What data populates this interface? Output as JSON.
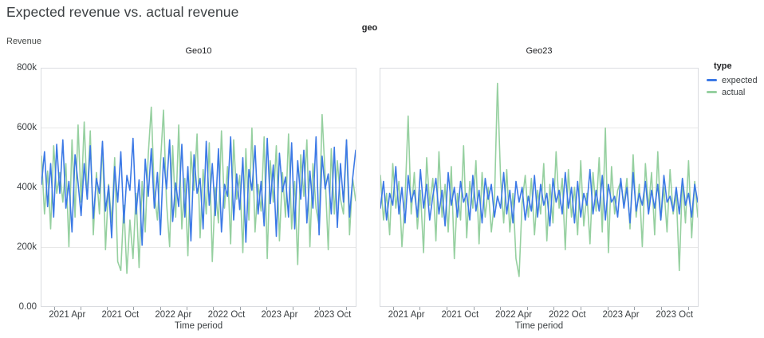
{
  "title": "Expected revenue vs. actual revenue",
  "facet_field": "geo",
  "legend": {
    "title": "type",
    "items": [
      {
        "label": "expected",
        "color": "#3c79e6"
      },
      {
        "label": "actual",
        "color": "#96d0a0"
      }
    ]
  },
  "colors": {
    "expected_line": "#3c79e6",
    "actual_line": "#96d0a0",
    "panel_border": "#dadce0",
    "gridline": "#e8e8e8",
    "text_dark": "#202124",
    "text_axis": "#3c4043"
  },
  "chart_data": [
    {
      "type": "line",
      "facet": "Geo10",
      "xlabel": "Time period",
      "ylabel": "Revenue",
      "ylim": [
        0,
        800000
      ],
      "value_unit": "thousands (k)",
      "x_range": "Jan 2021 to Dec 2023, points evenly spaced",
      "x_domain_months": 35.7,
      "grid": "horizontal",
      "y_tick_labels": [
        "800k",
        "600k",
        "400k",
        "200k",
        "0.00"
      ],
      "x_ticks": [
        {
          "label": "2021 Apr",
          "month": 3
        },
        {
          "label": "2021 Oct",
          "month": 9
        },
        {
          "label": "2022 Apr",
          "month": 15
        },
        {
          "label": "2022 Oct",
          "month": 21
        },
        {
          "label": "2023 Apr",
          "month": 27
        },
        {
          "label": "2023 Oct",
          "month": 33
        }
      ],
      "series": [
        {
          "name": "expected",
          "color": "#3c79e6",
          "values_k": [
            410,
            520,
            335,
            480,
            300,
            545,
            380,
            560,
            330,
            420,
            250,
            510,
            415,
            305,
            480,
            360,
            540,
            295,
            430,
            380,
            555,
            320,
            405,
            230,
            470,
            350,
            520,
            280,
            440,
            390,
            565,
            310,
            425,
            205,
            495,
            370,
            530,
            330,
            450,
            240,
            500,
            395,
            560,
            285,
            415,
            335,
            545,
            300,
            470,
            220,
            510,
            380,
            430,
            260,
            555,
            340,
            480,
            305,
            530,
            250,
            410,
            370,
            570,
            290,
            445,
            325,
            500,
            215,
            460,
            390,
            540,
            310,
            420,
            270,
            565,
            345,
            475,
            235,
            515,
            385,
            435,
            300,
            550,
            260,
            490,
            360,
            525,
            280,
            455,
            330,
            570,
            240,
            505,
            395,
            445,
            310,
            535,
            265,
            480,
            350,
            560,
            300,
            430,
            525
          ]
        },
        {
          "name": "actual",
          "color": "#96d0a0",
          "values_k": [
            505,
            310,
            455,
            260,
            540,
            380,
            450,
            350,
            480,
            200,
            560,
            300,
            610,
            350,
            620,
            360,
            590,
            240,
            450,
            310,
            550,
            190,
            410,
            280,
            500,
            150,
            120,
            340,
            110,
            290,
            160,
            380,
            130,
            420,
            250,
            510,
            670,
            380,
            290,
            480,
            660,
            350,
            200,
            540,
            300,
            610,
            260,
            430,
            170,
            520,
            390,
            580,
            230,
            460,
            310,
            550,
            150,
            400,
            280,
            590,
            330,
            470,
            210,
            560,
            360,
            440,
            180,
            530,
            290,
            600,
            250,
            410,
            320,
            570,
            160,
            490,
            350,
            540,
            220,
            450,
            300,
            580,
            260,
            420,
            140,
            510,
            370,
            560,
            200,
            480,
            330,
            270,
            645,
            440,
            190,
            530,
            310,
            490,
            360,
            310,
            560,
            240,
            430,
            355
          ]
        }
      ]
    },
    {
      "type": "line",
      "facet": "Geo23",
      "xlabel": "Time period",
      "ylabel": "Revenue",
      "ylim": [
        0,
        800000
      ],
      "value_unit": "thousands (k)",
      "x_range": "Jan 2021 to Dec 2023, points evenly spaced",
      "x_domain_months": 35.7,
      "grid": "horizontal",
      "y_tick_labels": [
        "800k",
        "600k",
        "400k",
        "200k",
        "0.00"
      ],
      "x_ticks": [
        {
          "label": "2021 Apr",
          "month": 3
        },
        {
          "label": "2021 Oct",
          "month": 9
        },
        {
          "label": "2022 Apr",
          "month": 15
        },
        {
          "label": "2022 Oct",
          "month": 21
        },
        {
          "label": "2023 Apr",
          "month": 27
        },
        {
          "label": "2023 Oct",
          "month": 33
        }
      ],
      "series": [
        {
          "name": "expected",
          "color": "#3c79e6",
          "values_k": [
            330,
            420,
            290,
            380,
            340,
            470,
            310,
            400,
            280,
            440,
            350,
            390,
            300,
            460,
            330,
            410,
            290,
            370,
            430,
            310,
            390,
            270,
            450,
            340,
            400,
            300,
            420,
            350,
            380,
            290,
            440,
            320,
            390,
            280,
            430,
            360,
            410,
            300,
            370,
            330,
            450,
            310,
            390,
            280,
            420,
            350,
            400,
            290,
            370,
            320,
            440,
            300,
            410,
            340,
            380,
            270,
            430,
            350,
            390,
            310,
            450,
            330,
            400,
            280,
            420,
            300,
            380,
            340,
            460,
            310,
            390,
            320,
            440,
            290,
            410,
            350,
            370,
            300,
            430,
            330,
            400,
            280,
            450,
            320,
            380,
            340,
            420,
            310,
            390,
            330,
            410,
            290,
            440,
            350,
            370,
            320,
            400,
            310,
            430,
            340,
            380,
            300,
            410,
            350
          ]
        },
        {
          "name": "actual",
          "color": "#96d0a0",
          "values_k": [
            440,
            290,
            380,
            240,
            480,
            330,
            420,
            200,
            360,
            640,
            310,
            450,
            260,
            390,
            180,
            500,
            340,
            430,
            220,
            520,
            300,
            410,
            250,
            470,
            160,
            380,
            290,
            540,
            230,
            420,
            330,
            490,
            210,
            450,
            300,
            400,
            250,
            350,
            750,
            430,
            280,
            460,
            250,
            380,
            160,
            100,
            350,
            440,
            300,
            430,
            240,
            390,
            310,
            480,
            220,
            410,
            280,
            520,
            330,
            430,
            190,
            460,
            300,
            400,
            240,
            490,
            270,
            380,
            210,
            450,
            320,
            500,
            250,
            600,
            180,
            470,
            310,
            390,
            420,
            340,
            430,
            260,
            510,
            300,
            410,
            200,
            480,
            330,
            450,
            240,
            520,
            290,
            400,
            250,
            460,
            310,
            380,
            120,
            430,
            280,
            490,
            230,
            420,
            300
          ]
        }
      ]
    }
  ]
}
